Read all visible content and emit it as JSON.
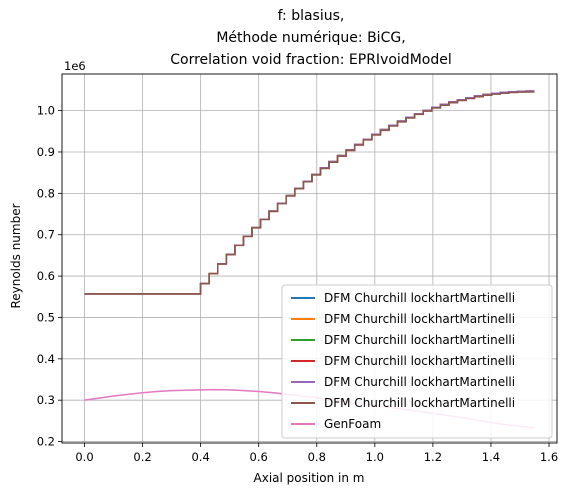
{
  "chart_data": {
    "type": "line",
    "title_lines": [
      "f: blasius,",
      "Méthode numérique: BiCG,",
      "Correlation void fraction: EPRIvoidModel"
    ],
    "xlabel": "Axial position in m",
    "ylabel": "Reynolds number",
    "y_offset_label": "1e6",
    "xlim": [
      -0.0775,
      1.6275
    ],
    "ylim": [
      0.1965,
      1.0885
    ],
    "x_ticks": [
      0.0,
      0.2,
      0.4,
      0.6,
      0.8,
      1.0,
      1.2,
      1.4,
      1.6
    ],
    "x_tick_labels": [
      "0.0",
      "0.2",
      "0.4",
      "0.6",
      "0.8",
      "1.0",
      "1.2",
      "1.4",
      "1.6"
    ],
    "y_ticks": [
      0.2,
      0.3,
      0.4,
      0.5,
      0.6,
      0.7,
      0.8,
      0.9,
      1.0
    ],
    "y_tick_labels": [
      "0.2",
      "0.3",
      "0.4",
      "0.5",
      "0.6",
      "0.7",
      "0.8",
      "0.9",
      "1.0"
    ],
    "grid": true,
    "legend_position": "lower-right",
    "series": [
      {
        "name": "DFM Churchill lockhartMartinelli",
        "color": "#1f77b4",
        "style": "step",
        "x_start": 0.0,
        "x_end": 1.55,
        "flat_value": 0.557,
        "rise_start": 0.4,
        "end_value": 1.047,
        "steps": 39
      },
      {
        "name": "DFM Churchill lockhartMartinelli",
        "color": "#ff7f0e",
        "style": "step",
        "x_start": 0.0,
        "x_end": 1.55,
        "flat_value": 0.557,
        "rise_start": 0.4,
        "end_value": 1.047,
        "steps": 39
      },
      {
        "name": "DFM Churchill lockhartMartinelli",
        "color": "#2ca02c",
        "style": "step",
        "x_start": 0.0,
        "x_end": 1.55,
        "flat_value": 0.557,
        "rise_start": 0.4,
        "end_value": 1.047,
        "steps": 39
      },
      {
        "name": "DFM Churchill lockhartMartinelli",
        "color": "#d62728",
        "style": "step",
        "x_start": 0.0,
        "x_end": 1.55,
        "flat_value": 0.557,
        "rise_start": 0.4,
        "end_value": 1.047,
        "steps": 39
      },
      {
        "name": "DFM Churchill lockhartMartinelli",
        "color": "#9467bd",
        "style": "step",
        "x_start": 0.0,
        "x_end": 1.55,
        "flat_value": 0.557,
        "rise_start": 0.4,
        "end_value": 1.047,
        "steps": 39
      },
      {
        "name": "DFM Churchill lockhartMartinelli",
        "color": "#8c564b",
        "style": "step",
        "x_start": 0.0,
        "x_end": 1.55,
        "flat_value": 0.557,
        "rise_start": 0.4,
        "end_value": 1.045,
        "steps": 39
      },
      {
        "name": "GenFoam",
        "color": "#e377c2",
        "style": "line",
        "x": [
          0.0,
          0.05,
          0.1,
          0.15,
          0.2,
          0.25,
          0.3,
          0.35,
          0.4,
          0.45,
          0.5,
          0.55,
          0.6,
          0.65,
          0.7,
          0.75,
          0.8,
          0.85,
          0.9,
          0.95,
          1.0,
          1.05,
          1.1,
          1.15,
          1.2,
          1.25,
          1.3,
          1.35,
          1.4,
          1.45,
          1.5,
          1.55
        ],
        "y": [
          0.3,
          0.305,
          0.31,
          0.314,
          0.318,
          0.321,
          0.323,
          0.324,
          0.325,
          0.3255,
          0.325,
          0.323,
          0.321,
          0.318,
          0.314,
          0.31,
          0.306,
          0.301,
          0.296,
          0.292,
          0.288,
          0.283,
          0.278,
          0.273,
          0.268,
          0.263,
          0.258,
          0.252,
          0.246,
          0.241,
          0.237,
          0.233
        ]
      }
    ]
  }
}
